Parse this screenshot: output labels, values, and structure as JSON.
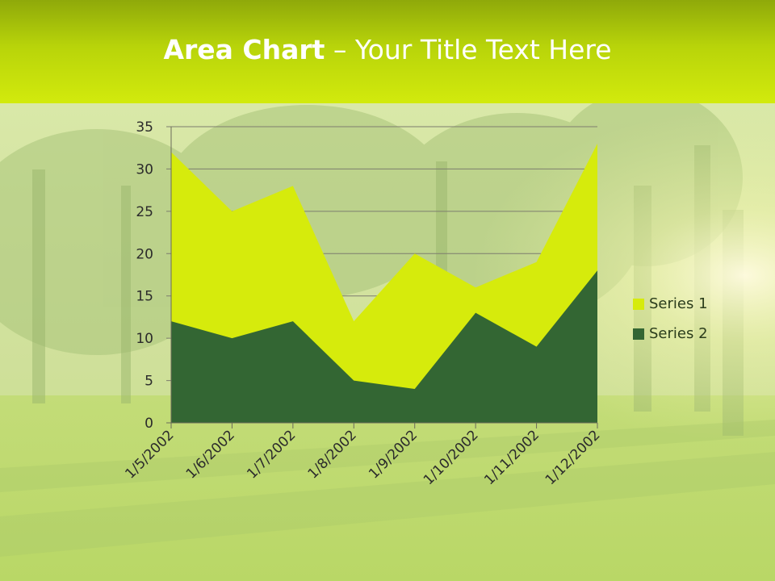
{
  "slide": {
    "title_bold": "Area Chart",
    "title_rest": " – Your Title Text Here"
  },
  "colors": {
    "series1": "#d6eb0c",
    "series2": "#336633",
    "axis": "#6b6b5a",
    "gridline": "#7d7d6e"
  },
  "chart_data": {
    "type": "area",
    "title": "",
    "xlabel": "",
    "ylabel": "",
    "categories": [
      "1/5/2002",
      "1/6/2002",
      "1/7/2002",
      "1/8/2002",
      "1/9/2002",
      "1/10/2002",
      "1/11/2002",
      "1/12/2002"
    ],
    "ylim": [
      0,
      35
    ],
    "yticks": [
      "0",
      "5",
      "10",
      "15",
      "20",
      "25",
      "30",
      "35"
    ],
    "grid": true,
    "legend_position": "right",
    "series": [
      {
        "name": "Series 1",
        "values": [
          32,
          25,
          28,
          12,
          20,
          16,
          19,
          33
        ]
      },
      {
        "name": "Series 2",
        "values": [
          12,
          10,
          12,
          5,
          4,
          13,
          9,
          18
        ]
      }
    ]
  }
}
